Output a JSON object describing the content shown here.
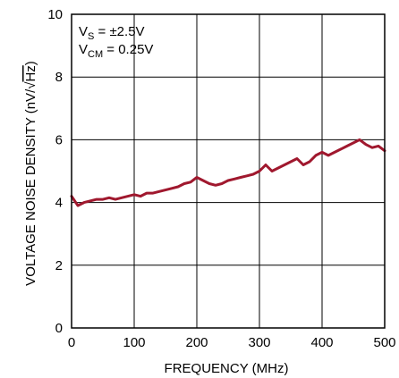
{
  "chart_data": {
    "type": "line",
    "title": "",
    "xlabel": "FREQUENCY (MHz)",
    "ylabel_main": "VOLTAGE NOISE DENSITY (nV/",
    "ylabel_radicand": "Hz",
    "ylabel_close": ")",
    "xlim": [
      0,
      500
    ],
    "ylim": [
      0,
      10
    ],
    "x_ticks": [
      0,
      100,
      200,
      300,
      400,
      500
    ],
    "y_ticks": [
      0,
      2,
      4,
      6,
      8,
      10
    ],
    "grid": true,
    "annotation": {
      "line1_main": "V",
      "line1_sub": "S",
      "line1_rest": " = ±2.5V",
      "line2_main": "V",
      "line2_sub": "CM",
      "line2_rest": " = 0.25V"
    },
    "line_color": "#a0182e",
    "series": [
      {
        "x": [
          0,
          10,
          20,
          30,
          40,
          50,
          60,
          70,
          80,
          90,
          100,
          110,
          120,
          130,
          140,
          150,
          160,
          170,
          180,
          190,
          200,
          210,
          220,
          230,
          240,
          250,
          260,
          270,
          280,
          290,
          300,
          310,
          320,
          330,
          340,
          350,
          360,
          370,
          380,
          390,
          400,
          410,
          420,
          430,
          440,
          450,
          460,
          470,
          480,
          490,
          500
        ],
        "y": [
          4.2,
          3.9,
          4.0,
          4.05,
          4.1,
          4.1,
          4.15,
          4.1,
          4.15,
          4.2,
          4.25,
          4.2,
          4.3,
          4.3,
          4.35,
          4.4,
          4.45,
          4.5,
          4.6,
          4.65,
          4.8,
          4.7,
          4.6,
          4.55,
          4.6,
          4.7,
          4.75,
          4.8,
          4.85,
          4.9,
          5.0,
          5.2,
          5.0,
          5.1,
          5.2,
          5.3,
          5.4,
          5.2,
          5.3,
          5.5,
          5.6,
          5.5,
          5.6,
          5.7,
          5.8,
          5.9,
          6.0,
          5.85,
          5.75,
          5.8,
          5.65
        ]
      }
    ]
  }
}
